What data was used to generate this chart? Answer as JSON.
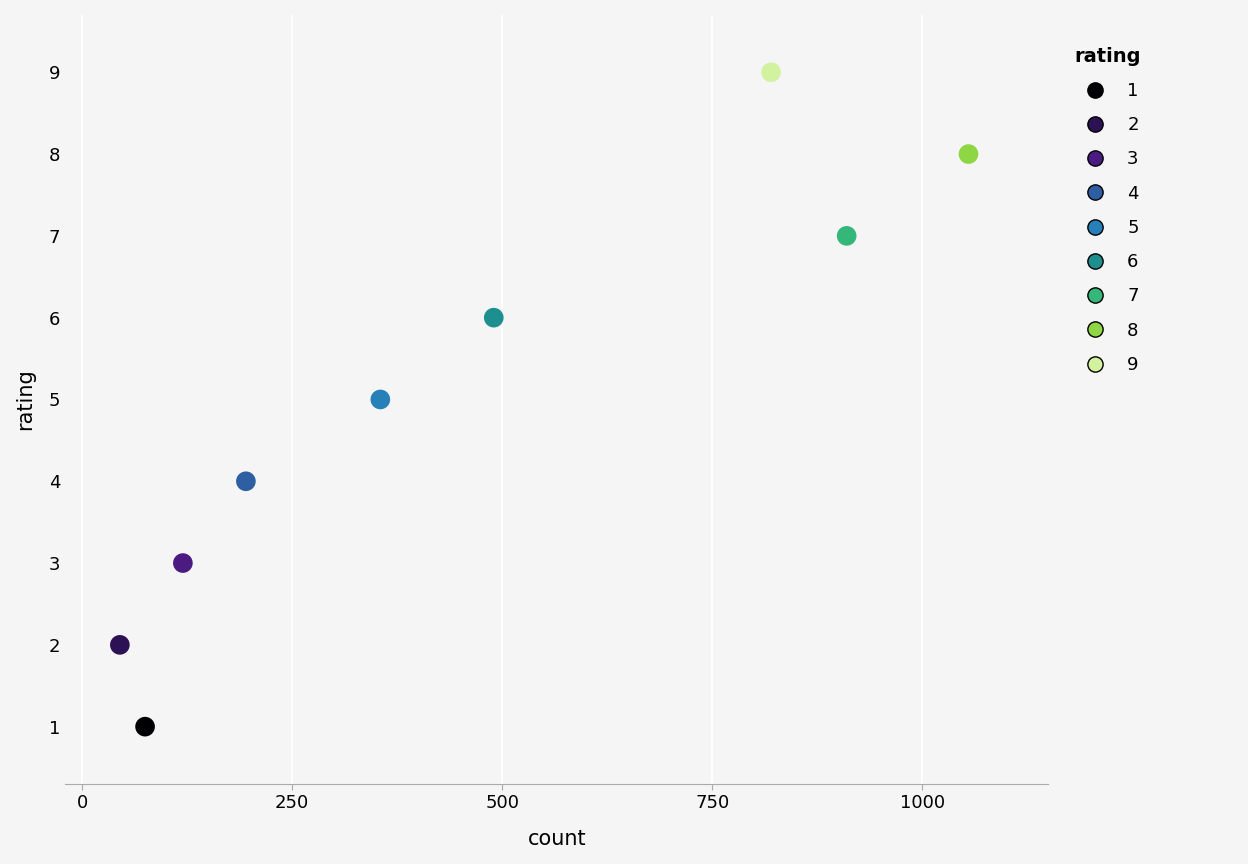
{
  "points": [
    {
      "rating": 1,
      "count": 75,
      "color": "#000004"
    },
    {
      "rating": 2,
      "count": 45,
      "color": "#2c1154"
    },
    {
      "rating": 3,
      "count": 120,
      "color": "#4a1486"
    },
    {
      "rating": 4,
      "count": 195,
      "color": "#2b5da8"
    },
    {
      "rating": 5,
      "count": 355,
      "color": "#2878b5"
    },
    {
      "rating": 6,
      "count": 490,
      "color": "#1a8a8a"
    },
    {
      "rating": 7,
      "count": 910,
      "color": "#35b779"
    },
    {
      "rating": 8,
      "count": 1055,
      "color": "#84d44b"
    },
    {
      "rating": 9,
      "count": 820,
      "color": "#d2f2a0"
    }
  ],
  "legend_colors": {
    "1": "#000004",
    "2": "#2c1154",
    "3": "#4a1486",
    "4": "#2b5da8",
    "5": "#2878b5",
    "6": "#1a8a8a",
    "7": "#35b779",
    "8": "#84d44b",
    "9": "#d2f2a0"
  },
  "xlabel": "count",
  "ylabel": "rating",
  "legend_title": "rating",
  "xlim": [
    -20,
    1150
  ],
  "ylim": [
    0.3,
    9.7
  ],
  "xticks": [
    0,
    250,
    500,
    750,
    1000
  ],
  "yticks": [
    1,
    2,
    3,
    4,
    5,
    6,
    7,
    8,
    9
  ],
  "background_color": "#f5f5f5",
  "grid_color": "#d0d0d0",
  "dot_size": 200,
  "axis_label_fontsize": 15,
  "tick_fontsize": 13,
  "legend_fontsize": 13,
  "legend_title_fontsize": 14
}
